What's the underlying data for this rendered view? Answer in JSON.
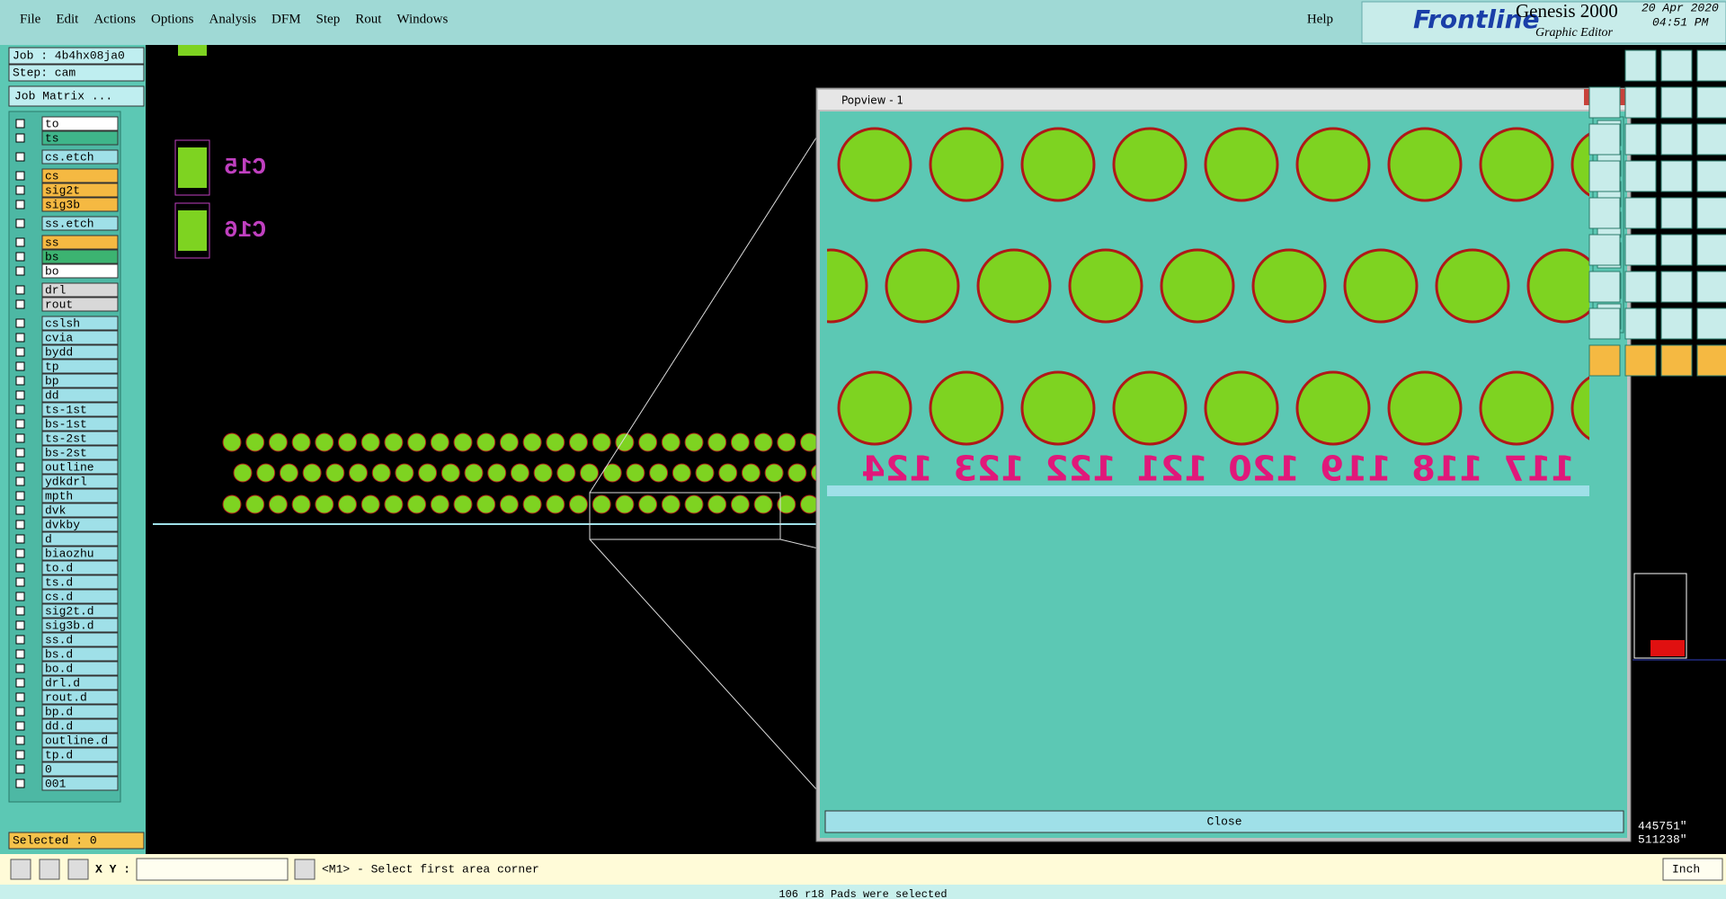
{
  "menu": [
    "File",
    "Edit",
    "Actions",
    "Options",
    "Analysis",
    "DFM",
    "Step",
    "Rout",
    "Windows"
  ],
  "help": "Help",
  "brand": {
    "logo": "Frontline",
    "product": "Genesis 2000",
    "subtitle": "Graphic Editor",
    "date": "20 Apr 2020",
    "time": "04:51 PM"
  },
  "job": {
    "job": "Job : 4b4hx08ja0",
    "step": "Step: cam",
    "matrix": "Job Matrix ..."
  },
  "layer_groups": [
    [
      {
        "name": "to",
        "color": "#ffffff"
      },
      {
        "name": "ts",
        "color": "#3fb58a"
      }
    ],
    [
      {
        "name": "cs.etch",
        "color": "#9fe0e8"
      }
    ],
    [
      {
        "name": "cs",
        "color": "#f5b942"
      },
      {
        "name": "sig2t",
        "color": "#f5b942"
      },
      {
        "name": "sig3b",
        "color": "#f5b942"
      }
    ],
    [
      {
        "name": "ss.etch",
        "color": "#9fe0e8"
      }
    ],
    [
      {
        "name": "ss",
        "color": "#f5b942"
      },
      {
        "name": "bs",
        "color": "#3cb371"
      },
      {
        "name": "bo",
        "color": "#ffffff"
      }
    ],
    [
      {
        "name": "drl",
        "color": "#d8d8d8"
      },
      {
        "name": "rout",
        "color": "#d8d8d8"
      }
    ],
    [
      {
        "name": "cslsh",
        "color": "#9fe0e8"
      },
      {
        "name": "cvia",
        "color": "#9fe0e8"
      },
      {
        "name": "bydd",
        "color": "#9fe0e8"
      },
      {
        "name": "tp",
        "color": "#9fe0e8"
      },
      {
        "name": "bp",
        "color": "#9fe0e8"
      },
      {
        "name": "dd",
        "color": "#9fe0e8"
      },
      {
        "name": "ts-1st",
        "color": "#9fe0e8"
      },
      {
        "name": "bs-1st",
        "color": "#9fe0e8"
      },
      {
        "name": "ts-2st",
        "color": "#9fe0e8"
      },
      {
        "name": "bs-2st",
        "color": "#9fe0e8"
      },
      {
        "name": "outline",
        "color": "#9fe0e8"
      },
      {
        "name": "ydkdrl",
        "color": "#9fe0e8"
      },
      {
        "name": "mpth",
        "color": "#9fe0e8"
      },
      {
        "name": "dvk",
        "color": "#9fe0e8"
      },
      {
        "name": "dvkby",
        "color": "#9fe0e8"
      },
      {
        "name": "d",
        "color": "#9fe0e8"
      },
      {
        "name": "biaozhu",
        "color": "#9fe0e8"
      },
      {
        "name": "to.d",
        "color": "#9fe0e8"
      },
      {
        "name": "ts.d",
        "color": "#9fe0e8"
      },
      {
        "name": "cs.d",
        "color": "#9fe0e8"
      },
      {
        "name": "sig2t.d",
        "color": "#9fe0e8"
      },
      {
        "name": "sig3b.d",
        "color": "#9fe0e8"
      },
      {
        "name": "ss.d",
        "color": "#9fe0e8"
      },
      {
        "name": "bs.d",
        "color": "#9fe0e8"
      },
      {
        "name": "bo.d",
        "color": "#9fe0e8"
      },
      {
        "name": "drl.d",
        "color": "#9fe0e8"
      },
      {
        "name": "rout.d",
        "color": "#9fe0e8"
      },
      {
        "name": "bp.d",
        "color": "#9fe0e8"
      },
      {
        "name": "dd.d",
        "color": "#9fe0e8"
      },
      {
        "name": "outline.d",
        "color": "#9fe0e8"
      },
      {
        "name": "tp.d",
        "color": "#9fe0e8"
      },
      {
        "name": "0",
        "color": "#9fe0e8"
      },
      {
        "name": "001",
        "color": "#9fe0e8"
      }
    ]
  ],
  "selected": "Selected : 0",
  "canvas_labels": [
    "C15",
    "C16"
  ],
  "popview": {
    "title": "Popview - 1",
    "pad_numbers": [
      "124",
      "123",
      "122",
      "121",
      "120",
      "119",
      "118",
      "117"
    ],
    "close": "Close"
  },
  "coords": [
    "445751\"",
    "511238\""
  ],
  "xy_label": "X Y :",
  "prompt": "<M1> - Select first area corner",
  "units": "Inch",
  "status": "106 r18 Pads were selected"
}
